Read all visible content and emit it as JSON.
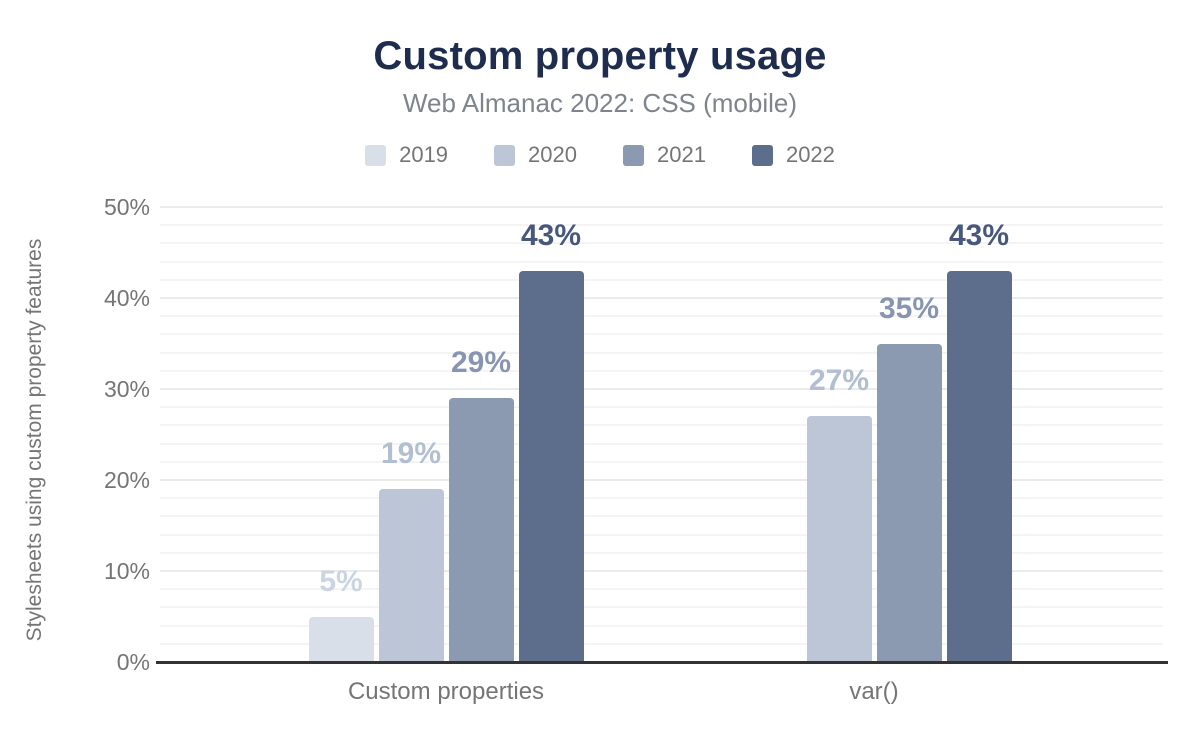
{
  "chart_data": {
    "type": "bar",
    "title": "Custom property usage",
    "subtitle": "Web Almanac 2022: CSS (mobile)",
    "ylabel": "Stylesheets using custom property features",
    "xlabel": "",
    "categories": [
      "Custom properties",
      "var()"
    ],
    "series": [
      {
        "name": "2019",
        "color": "#d9dfe9",
        "label_color": "#cbd4e3",
        "values": [
          5,
          null
        ]
      },
      {
        "name": "2020",
        "color": "#bcc6d6",
        "label_color": "#b2bed2",
        "values": [
          19,
          27
        ]
      },
      {
        "name": "2021",
        "color": "#8b99b1",
        "label_color": "#8895b2",
        "values": [
          29,
          35
        ]
      },
      {
        "name": "2022",
        "color": "#5d6e8d",
        "label_color": "#47587c",
        "values": [
          43,
          43
        ]
      }
    ],
    "value_suffix": "%",
    "ylim": [
      0,
      50
    ],
    "yticks": [
      0,
      10,
      20,
      30,
      40,
      50
    ],
    "ytick_labels": [
      "0%",
      "10%",
      "20%",
      "30%",
      "40%",
      "50%"
    ],
    "minor_grid_step": 2,
    "grid": true,
    "legend_position": "top"
  },
  "colors": {
    "background": "#ffffff",
    "title": "#1e2c4e",
    "subtitle": "#7d848e",
    "axis_text": "#757575",
    "axis_line": "#333333",
    "major_grid": "#ebebeb",
    "minor_grid": "#f4f4f4"
  }
}
